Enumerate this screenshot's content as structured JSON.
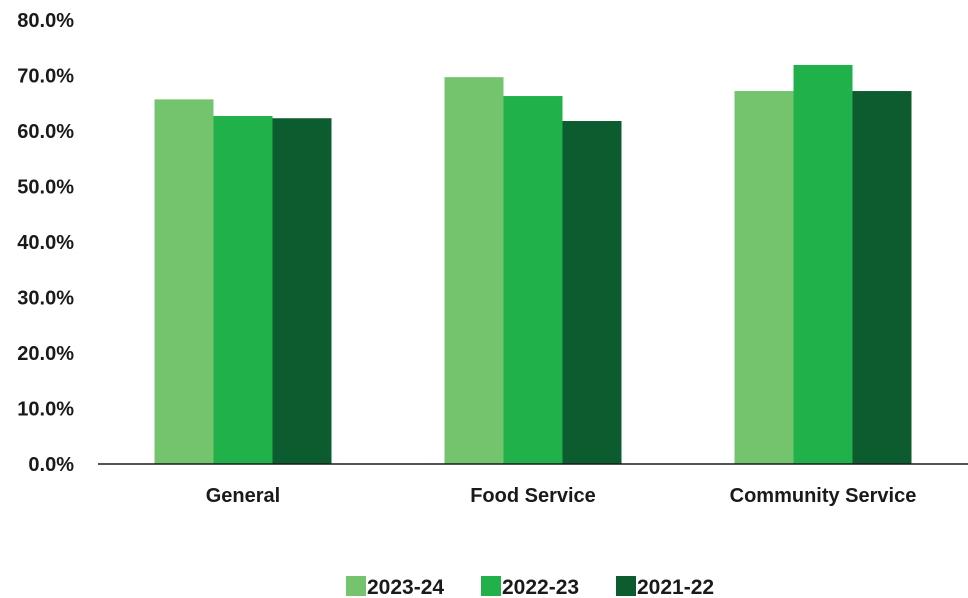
{
  "chart_data": {
    "type": "bar",
    "title": "",
    "xlabel": "",
    "ylabel": "",
    "categories": [
      "General",
      "Food Service",
      "Community Service"
    ],
    "series": [
      {
        "name": "2023-24",
        "color": "#74c46e",
        "values": [
          65.7,
          69.7,
          67.2
        ]
      },
      {
        "name": "2022-23",
        "color": "#21b14b",
        "values": [
          62.7,
          66.3,
          71.9
        ]
      },
      {
        "name": "2021-22",
        "color": "#0d5c2f",
        "values": [
          62.3,
          61.8,
          67.2
        ]
      }
    ],
    "ylim": [
      0,
      80
    ],
    "yticks": [
      0,
      10,
      20,
      30,
      40,
      50,
      60,
      70,
      80
    ],
    "ytick_labels": [
      "0.0%",
      "10.0%",
      "20.0%",
      "30.0%",
      "40.0%",
      "50.0%",
      "60.0%",
      "70.0%",
      "80.0%"
    ],
    "grid": false,
    "legend_position": "bottom-center"
  }
}
